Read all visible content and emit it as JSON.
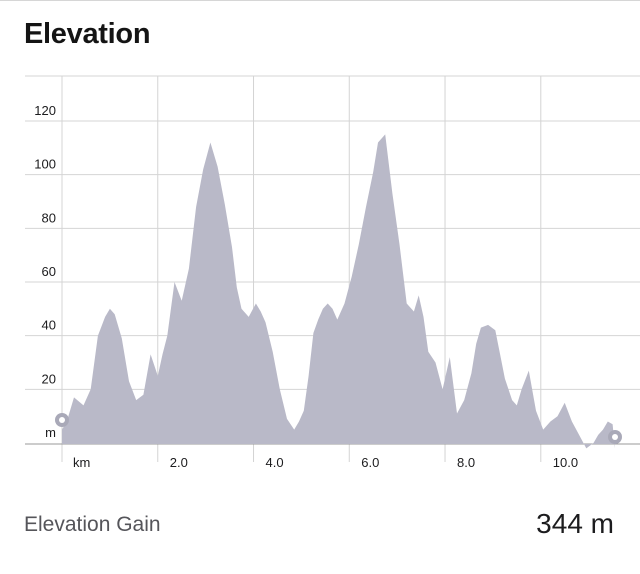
{
  "title": "Elevation",
  "colors": {
    "area_fill": "#b9b9c8",
    "grid": "#d4d4d4",
    "axis": "#9a9a9a",
    "text": "#1c1c1e",
    "endpoint_marker": "#a9a9b8"
  },
  "chart_data": {
    "type": "area",
    "x_unit_label": "km",
    "y_unit_label": "m",
    "x_ticks": [
      "2.0",
      "4.0",
      "6.0",
      "8.0",
      "10.0"
    ],
    "y_ticks": [
      "20",
      "40",
      "60",
      "80",
      "100",
      "120"
    ],
    "xlim": [
      0,
      12
    ],
    "ylim": [
      -5,
      135
    ],
    "grid": true,
    "endpoint_markers": true,
    "x": [
      0,
      0.1,
      0.25,
      0.45,
      0.6,
      0.75,
      0.9,
      1.0,
      1.1,
      1.25,
      1.4,
      1.55,
      1.7,
      1.85,
      2.0,
      2.1,
      2.2,
      2.35,
      2.5,
      2.65,
      2.8,
      2.95,
      3.1,
      3.25,
      3.4,
      3.55,
      3.65,
      3.75,
      3.9,
      4.05,
      4.15,
      4.25,
      4.4,
      4.55,
      4.7,
      4.85,
      4.95,
      5.05,
      5.15,
      5.25,
      5.35,
      5.45,
      5.55,
      5.65,
      5.75,
      5.9,
      6.05,
      6.2,
      6.35,
      6.5,
      6.6,
      6.75,
      6.9,
      7.05,
      7.2,
      7.35,
      7.45,
      7.55,
      7.65,
      7.8,
      7.95,
      8.1,
      8.25,
      8.4,
      8.55,
      8.65,
      8.75,
      8.9,
      9.05,
      9.15,
      9.25,
      9.4,
      9.5,
      9.6,
      9.75,
      9.9,
      10.05,
      10.2,
      10.35,
      10.5,
      10.65,
      10.8,
      10.95,
      11.1,
      11.2,
      11.3,
      11.4,
      11.5,
      11.55
    ],
    "y": [
      5,
      8,
      17,
      14,
      20,
      40,
      47,
      50,
      48,
      39,
      23,
      16,
      18,
      33,
      25,
      33,
      40,
      60,
      53,
      65,
      88,
      102,
      112,
      103,
      89,
      73,
      58,
      50,
      47,
      52,
      49,
      45,
      34,
      20,
      9,
      5,
      8,
      12,
      25,
      41,
      46,
      50,
      52,
      50,
      46,
      52,
      62,
      74,
      88,
      101,
      112,
      115,
      93,
      74,
      52,
      49,
      55,
      47,
      34,
      30,
      20,
      32,
      11,
      16,
      26,
      37,
      43,
      44,
      42,
      33,
      24,
      16,
      14,
      20,
      27,
      12,
      5,
      8,
      10,
      15,
      8,
      3,
      -2,
      0,
      3,
      5,
      8,
      7,
      -2
    ]
  },
  "footer": {
    "label": "Elevation Gain",
    "value": "344 m"
  }
}
